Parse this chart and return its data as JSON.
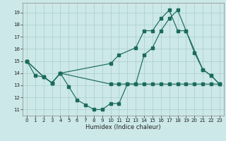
{
  "title": "",
  "xlabel": "Humidex (Indice chaleur)",
  "bg_color": "#cce8e8",
  "grid_color": "#aacccc",
  "line_color": "#1a6b5a",
  "xlim": [
    -0.5,
    23.5
  ],
  "ylim": [
    10.5,
    19.8
  ],
  "yticks": [
    11,
    12,
    13,
    14,
    15,
    16,
    17,
    18,
    19
  ],
  "xticks": [
    0,
    1,
    2,
    3,
    4,
    5,
    6,
    7,
    8,
    9,
    10,
    11,
    12,
    13,
    14,
    15,
    16,
    17,
    18,
    19,
    20,
    21,
    22,
    23
  ],
  "line1_x": [
    0,
    1,
    2,
    3,
    4,
    5,
    6,
    7,
    8,
    9,
    10,
    11,
    12,
    13,
    14,
    15,
    16,
    17,
    18,
    19,
    20,
    21,
    22,
    23
  ],
  "line1_y": [
    15,
    13.8,
    13.7,
    13.2,
    14.0,
    12.9,
    11.8,
    11.4,
    11.0,
    11.0,
    11.5,
    11.5,
    13.1,
    13.1,
    15.5,
    16.1,
    17.5,
    18.5,
    19.2,
    17.5,
    15.7,
    14.3,
    13.8,
    13.1
  ],
  "line2_x": [
    0,
    2,
    3,
    4,
    10,
    11,
    13,
    14,
    15,
    16,
    17,
    18,
    19,
    21,
    22,
    23
  ],
  "line2_y": [
    15,
    13.7,
    13.2,
    14.0,
    14.8,
    15.5,
    16.1,
    17.5,
    17.5,
    18.5,
    19.2,
    17.5,
    17.5,
    14.3,
    13.8,
    13.1
  ],
  "line3_x": [
    0,
    2,
    3,
    4,
    10,
    11,
    12,
    13,
    14,
    15,
    16,
    17,
    18,
    19,
    20,
    21,
    22,
    23
  ],
  "line3_y": [
    15,
    13.7,
    13.2,
    14.0,
    13.1,
    13.1,
    13.1,
    13.1,
    13.1,
    13.1,
    13.1,
    13.1,
    13.1,
    13.1,
    13.1,
    13.1,
    13.1,
    13.1
  ]
}
